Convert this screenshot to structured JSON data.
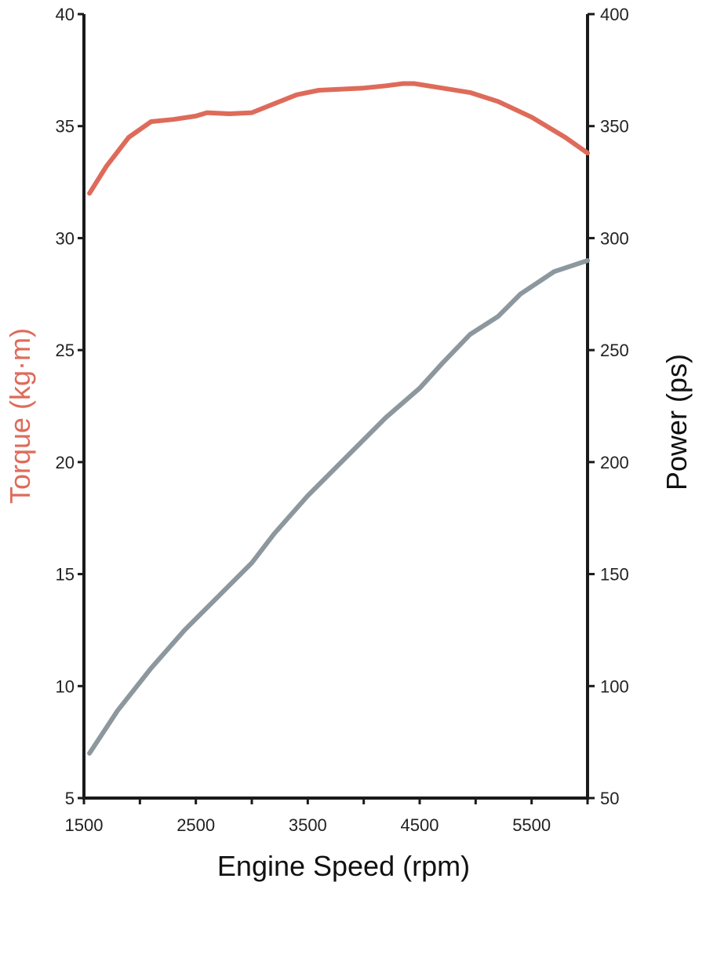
{
  "chart_data": {
    "type": "line",
    "title": "",
    "xlabel": "Engine Speed (rpm)",
    "ylabel_left": "Torque (kg·m)",
    "ylabel_right": "Power (ps)",
    "xlim": [
      1500,
      6000
    ],
    "ylim_left": [
      5,
      40
    ],
    "ylim_right": [
      50,
      400
    ],
    "x_ticks": [
      1500,
      2000,
      2500,
      3000,
      3500,
      4000,
      4500,
      5000,
      5500,
      6000
    ],
    "x_tick_labels": [
      "1500",
      "2500",
      "3500",
      "4500",
      "5500"
    ],
    "x_tick_label_values": [
      1500,
      2500,
      3500,
      4500,
      5500
    ],
    "y_left_ticks": [
      "5",
      "10",
      "15",
      "20",
      "25",
      "30",
      "35",
      "40"
    ],
    "y_right_ticks": [
      "50",
      "100",
      "150",
      "200",
      "250",
      "300",
      "350",
      "400"
    ],
    "grid": false,
    "legend": "none",
    "series": [
      {
        "name": "Torque (kg·m)",
        "axis": "left",
        "color": "#de6b5a",
        "x": [
          1550,
          1700,
          1900,
          2100,
          2300,
          2500,
          2600,
          2800,
          3000,
          3200,
          3400,
          3600,
          3800,
          4000,
          4200,
          4350,
          4450,
          4700,
          4950,
          5200,
          5500,
          5800,
          6000
        ],
        "y": [
          32.0,
          33.2,
          34.5,
          35.2,
          35.3,
          35.45,
          35.6,
          35.55,
          35.6,
          36.0,
          36.4,
          36.6,
          36.65,
          36.7,
          36.8,
          36.9,
          36.9,
          36.7,
          36.5,
          36.1,
          35.4,
          34.5,
          33.8
        ]
      },
      {
        "name": "Power (ps)",
        "axis": "right",
        "color": "#8c979e",
        "x": [
          1550,
          1800,
          2100,
          2400,
          2700,
          3000,
          3200,
          3500,
          3800,
          4000,
          4200,
          4500,
          4700,
          4950,
          5200,
          5400,
          5700,
          6000
        ],
        "y": [
          70,
          89,
          108,
          125,
          140,
          155,
          168,
          185,
          200,
          210,
          220,
          233,
          244,
          257,
          265,
          275,
          285,
          290
        ]
      }
    ]
  }
}
